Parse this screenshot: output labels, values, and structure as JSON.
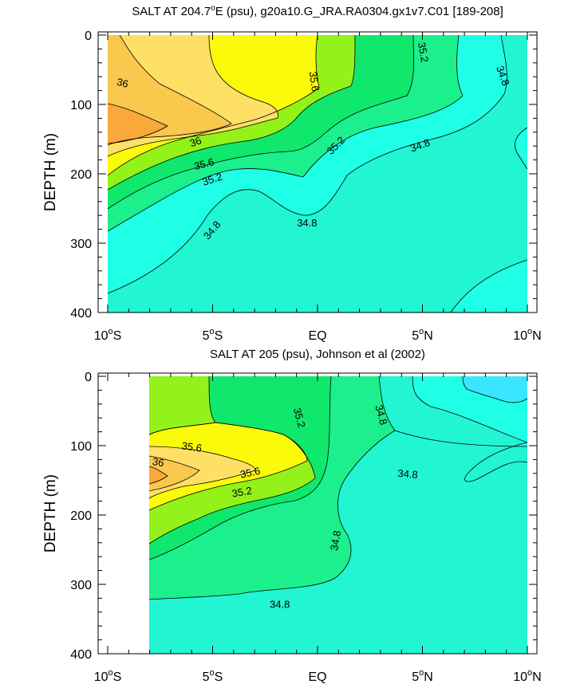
{
  "colors": {
    "c34_6": "#1effe6",
    "c34_8": "#22f5d2",
    "c35_0": "#1bf08c",
    "c35_2": "#0fe86c",
    "c35_4": "#92f21a",
    "c35_6": "#fafa0a",
    "c35_8": "#ffe066",
    "c36_0": "#fbc84e",
    "c36_2": "#f9a83a",
    "c34_4": "#3ae6ff",
    "line": "#000000"
  },
  "chart_data": [
    {
      "type": "contour",
      "title": "SALT AT 204.7°E (psu), g20a10.G_JRA.RA0304.gx1v7.C01 [189-208]",
      "title_parts": {
        "pre": "SALT AT 204.7",
        "sup": "o",
        "post": "E (psu), g20a10.G_JRA.RA0304.gx1v7.C01 [189-208]"
      },
      "ylabel": "DEPTH (m)",
      "xlim": [
        -10,
        10
      ],
      "ylim": [
        400,
        0
      ],
      "x_ticks": [
        {
          "value": -10,
          "label": "10",
          "sup": "o",
          "suffix": "S"
        },
        {
          "value": -5,
          "label": "5",
          "sup": "o",
          "suffix": "S"
        },
        {
          "value": 0,
          "label": "EQ",
          "sup": "",
          "suffix": ""
        },
        {
          "value": 5,
          "label": "5",
          "sup": "o",
          "suffix": "N"
        },
        {
          "value": 10,
          "label": "10",
          "sup": "o",
          "suffix": "N"
        }
      ],
      "y_ticks": [
        {
          "value": 0,
          "label": "0"
        },
        {
          "value": 100,
          "label": "100"
        },
        {
          "value": 200,
          "label": "200"
        },
        {
          "value": 300,
          "label": "300"
        },
        {
          "value": 400,
          "label": "400"
        }
      ],
      "data_xrange": [
        -10,
        10
      ],
      "contour_labels": [
        {
          "text": "36",
          "x": -9.3,
          "y": 70,
          "rotate": 15
        },
        {
          "text": "36",
          "x": -5.8,
          "y": 155,
          "rotate": -20
        },
        {
          "text": "35.6",
          "x": -5.4,
          "y": 187,
          "rotate": -15
        },
        {
          "text": "35.2",
          "x": -5.0,
          "y": 209,
          "rotate": -18
        },
        {
          "text": "35.6",
          "x": -0.2,
          "y": 67,
          "rotate": 82
        },
        {
          "text": "35.2",
          "x": 0.9,
          "y": 160,
          "rotate": -45
        },
        {
          "text": "35.2",
          "x": 5.0,
          "y": 25,
          "rotate": 80
        },
        {
          "text": "34.8",
          "x": 8.8,
          "y": 59,
          "rotate": 70
        },
        {
          "text": "34.8",
          "x": 4.9,
          "y": 160,
          "rotate": -20
        },
        {
          "text": "34.8",
          "x": -0.5,
          "y": 272,
          "rotate": 0
        },
        {
          "text": "34.8",
          "x": -5.0,
          "y": 282,
          "rotate": -50
        }
      ]
    },
    {
      "type": "contour",
      "title": "SALT AT 205 (psu), Johnson et al (2002)",
      "title_parts": {
        "pre": "SALT AT 205 (psu), Johnson et al (2002)",
        "sup": "",
        "post": ""
      },
      "ylabel": "DEPTH (m)",
      "xlim": [
        -10,
        10
      ],
      "ylim": [
        400,
        0
      ],
      "x_ticks": [
        {
          "value": -10,
          "label": "10",
          "sup": "o",
          "suffix": "S"
        },
        {
          "value": -5,
          "label": "5",
          "sup": "o",
          "suffix": "S"
        },
        {
          "value": 0,
          "label": "EQ",
          "sup": "",
          "suffix": ""
        },
        {
          "value": 5,
          "label": "5",
          "sup": "o",
          "suffix": "N"
        },
        {
          "value": 10,
          "label": "10",
          "sup": "o",
          "suffix": "N"
        }
      ],
      "y_ticks": [
        {
          "value": 0,
          "label": "0"
        },
        {
          "value": 100,
          "label": "100"
        },
        {
          "value": 200,
          "label": "200"
        },
        {
          "value": 300,
          "label": "300"
        },
        {
          "value": 400,
          "label": "400"
        }
      ],
      "data_xrange": [
        -8,
        10
      ],
      "contour_labels": [
        {
          "text": "35.6",
          "x": -6.0,
          "y": 103,
          "rotate": 8
        },
        {
          "text": "36",
          "x": -7.6,
          "y": 125,
          "rotate": 10
        },
        {
          "text": "35.6",
          "x": -3.2,
          "y": 140,
          "rotate": -12
        },
        {
          "text": "35.2",
          "x": -3.6,
          "y": 168,
          "rotate": -10
        },
        {
          "text": "35.2",
          "x": -0.9,
          "y": 60,
          "rotate": 75
        },
        {
          "text": "34.8",
          "x": 3.0,
          "y": 56,
          "rotate": 75
        },
        {
          "text": "34.8",
          "x": 4.3,
          "y": 142,
          "rotate": 5
        },
        {
          "text": "34.8",
          "x": 0.9,
          "y": 237,
          "rotate": -80
        },
        {
          "text": "34.8",
          "x": -1.8,
          "y": 330,
          "rotate": 0
        }
      ]
    }
  ]
}
